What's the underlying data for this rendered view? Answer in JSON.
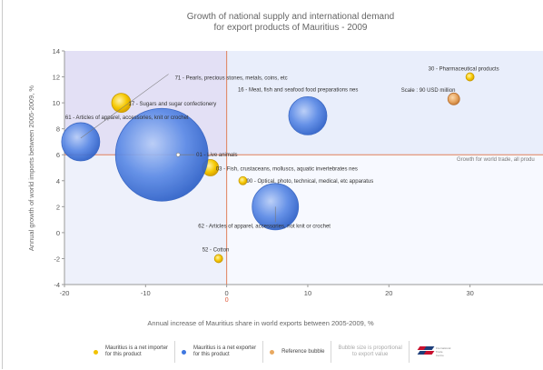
{
  "chart_data": {
    "type": "scatter",
    "title": "Growth of national supply and international demand",
    "subtitle": "for export products of Mauritius - 2009",
    "xlabel": "Annual increase of Mauritius share in world exports between 2005-2009, %",
    "ylabel": "Annual growth of world imports between 2005-2009, %",
    "xlim": [
      -20,
      39
    ],
    "ylim": [
      -4,
      14
    ],
    "x_ticks": [
      "-20",
      "-10",
      "0",
      "10",
      "20",
      "30"
    ],
    "y_ticks": [
      "-4",
      "-2",
      "0",
      "2",
      "4",
      "6",
      "8",
      "10",
      "12",
      "14"
    ],
    "world_growth_line": 6,
    "world_growth_label": "Growth for world trade, all produ",
    "zero_marker": "0",
    "grid": false,
    "series": [
      {
        "name": "Mauritius is a net importer for this product",
        "color": "#f2c200",
        "points": [
          {
            "x": -13,
            "y": 10,
            "size": 0.7,
            "label": "17 - Sugars and sugar confectionery"
          },
          {
            "x": -2,
            "y": 5,
            "size": 0.6,
            "label": "03 - Fish, crustaceans, molluscs, aquatic invertebrates nes"
          },
          {
            "x": 2,
            "y": 4,
            "size": 0.3,
            "label": "90 - Optical, photo, technical, medical, etc apparatus"
          },
          {
            "x": -1,
            "y": -2,
            "size": 0.3,
            "label": "52 - Cotton"
          },
          {
            "x": 30,
            "y": 12,
            "size": 0.3,
            "label": "30 - Pharmaceutical products"
          },
          {
            "x": -6.5,
            "y": 12,
            "size": 0.3,
            "label": "71 - Pearls, precious stones, metals, coins, etc"
          }
        ]
      },
      {
        "name": "Mauritius is a net exporter for this product",
        "color": "#3f77e0",
        "points": [
          {
            "x": -8,
            "y": 6,
            "size": 3.4,
            "label": "01 - Live animals"
          },
          {
            "x": 6,
            "y": 2,
            "size": 1.7,
            "label": "62 - Articles of apparel, accessories, not knit or crochet"
          },
          {
            "x": 10,
            "y": 9,
            "size": 1.4,
            "label": "16 - Meat, fish and seafood food preparations nes"
          },
          {
            "x": -18,
            "y": 7,
            "size": 1.4,
            "label": "61 - Articles of apparel, accessories, knit or crochet"
          }
        ]
      }
    ],
    "reference_bubble": {
      "x": 28,
      "y": 10.3,
      "label": "Scale : 90 USD million"
    }
  },
  "legend": {
    "net_importer": "Mauritius is a net importer\nfor this product",
    "net_exporter": "Mauritius is a net exporter\nfor this product",
    "reference": "Reference bubble",
    "note": "Bubble size is proportional\nto export value",
    "logo_text": "International\nTrade\nCentre",
    "importer_color": "#f2c200",
    "exporter_color": "#3f77e0",
    "reference_color": "#e8a860"
  }
}
